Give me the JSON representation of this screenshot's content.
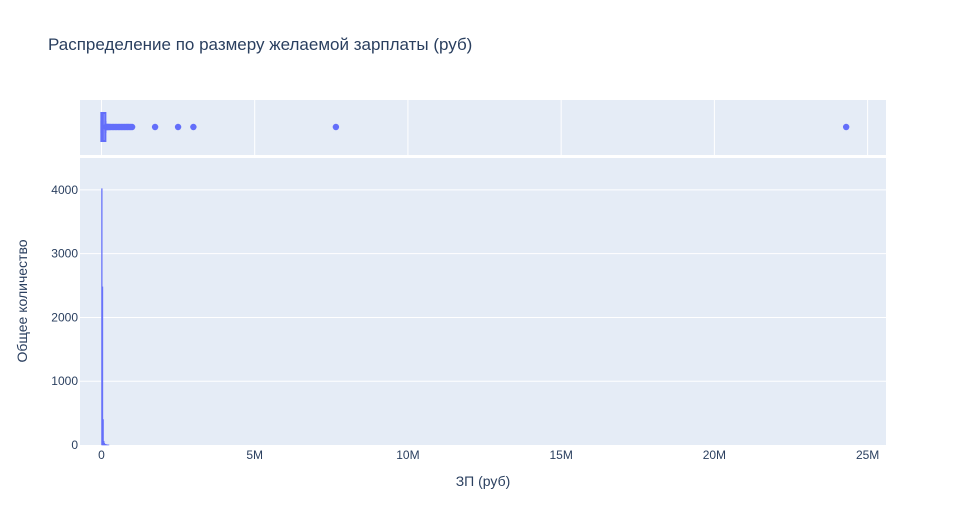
{
  "chart_data": {
    "type": "histogram",
    "title": "Распределение по размеру желаемой зарплаты (руб)",
    "xlabel": "ЗП (руб)",
    "ylabel": "Общее количество",
    "xlim": [
      -700000,
      25600000
    ],
    "ylim": [
      0,
      4500
    ],
    "x_ticks": [
      0,
      5000000,
      10000000,
      15000000,
      20000000,
      25000000
    ],
    "x_tick_labels": [
      "0",
      "5M",
      "10M",
      "15M",
      "20M",
      "25M"
    ],
    "y_ticks": [
      0,
      1000,
      2000,
      3000,
      4000
    ],
    "y_tick_labels": [
      "0",
      "1000",
      "2000",
      "3000",
      "4000"
    ],
    "grid": true,
    "legend": "none",
    "histogram": {
      "bins": [
        {
          "x0": 0,
          "x1": 20000,
          "count": 4020
        },
        {
          "x0": 20000,
          "x1": 40000,
          "count": 2480
        },
        {
          "x0": 40000,
          "x1": 60000,
          "count": 400
        },
        {
          "x0": 60000,
          "x1": 80000,
          "count": 60
        },
        {
          "x0": 80000,
          "x1": 100000,
          "count": 30
        },
        {
          "x0": 100000,
          "x1": 120000,
          "count": 15
        },
        {
          "x0": 120000,
          "x1": 140000,
          "count": 10
        },
        {
          "x0": 140000,
          "x1": 160000,
          "count": 8
        },
        {
          "x0": 160000,
          "x1": 180000,
          "count": 5
        },
        {
          "x0": 180000,
          "x1": 200000,
          "count": 4
        },
        {
          "x0": 200000,
          "x1": 220000,
          "count": 3
        },
        {
          "x0": 220000,
          "x1": 240000,
          "count": 2
        }
      ]
    },
    "boxplot": {
      "min": 0,
      "q1": 30000,
      "median": 45000,
      "q3": 70000,
      "upper_fence": 130000,
      "outliers": [
        150000,
        180000,
        200000,
        230000,
        260000,
        300000,
        350000,
        400000,
        450000,
        500000,
        550000,
        600000,
        650000,
        700000,
        750000,
        800000,
        850000,
        900000,
        950000,
        1000000,
        1750000,
        2500000,
        3000000,
        7650000,
        24300000
      ]
    },
    "colors": {
      "series": "#636efa",
      "plot_bg": "#e5ecf6",
      "grid": "#ffffff",
      "text": "#2a3f5f"
    }
  }
}
